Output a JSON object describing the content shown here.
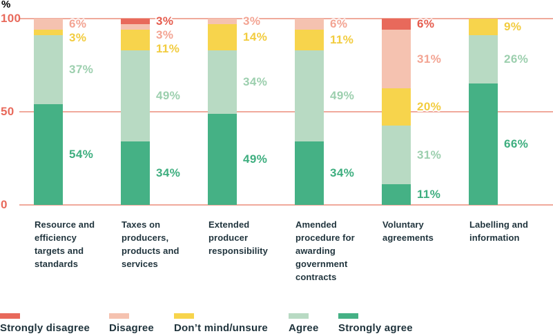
{
  "chart_data": {
    "type": "bar",
    "stacked": true,
    "unit": "%",
    "ylabel": "%",
    "ylim": [
      0,
      100
    ],
    "yticks": [
      100,
      50,
      0
    ],
    "grid_on": true,
    "grid_color": "#F0A99B",
    "axis_label_color": "#E8695B",
    "category_label_color": "#1F333C",
    "background": "#FFFFFF",
    "legend_position": "bottom",
    "categories": [
      "Resource and efficiency targets and standards",
      "Taxes on producers, products and services",
      "Extended producer responsibility",
      "Amended procedure for awarding government contracts",
      "Voluntary agreements",
      "Labelling and information"
    ],
    "series": [
      {
        "name": "Strongly disagree",
        "color": "#E8695B",
        "label_color": "#E55B4D",
        "values": [
          0,
          3,
          0,
          0,
          6,
          0
        ]
      },
      {
        "name": "Disagree",
        "color": "#F5C2B0",
        "label_color": "#F3A493",
        "values": [
          6,
          3,
          3,
          6,
          31,
          0
        ]
      },
      {
        "name": "Don’t mind/unsure",
        "color": "#F7D44C",
        "label_color": "#F2CC3F",
        "values": [
          3,
          11,
          14,
          11,
          20,
          9
        ]
      },
      {
        "name": "Agree",
        "color": "#B8DAC3",
        "label_color": "#9CCFAE",
        "values": [
          37,
          49,
          34,
          49,
          31,
          26
        ]
      },
      {
        "name": "Strongly agree",
        "color": "#45B185",
        "label_color": "#3EAE7F",
        "values": [
          54,
          34,
          49,
          34,
          11,
          66
        ]
      }
    ]
  }
}
